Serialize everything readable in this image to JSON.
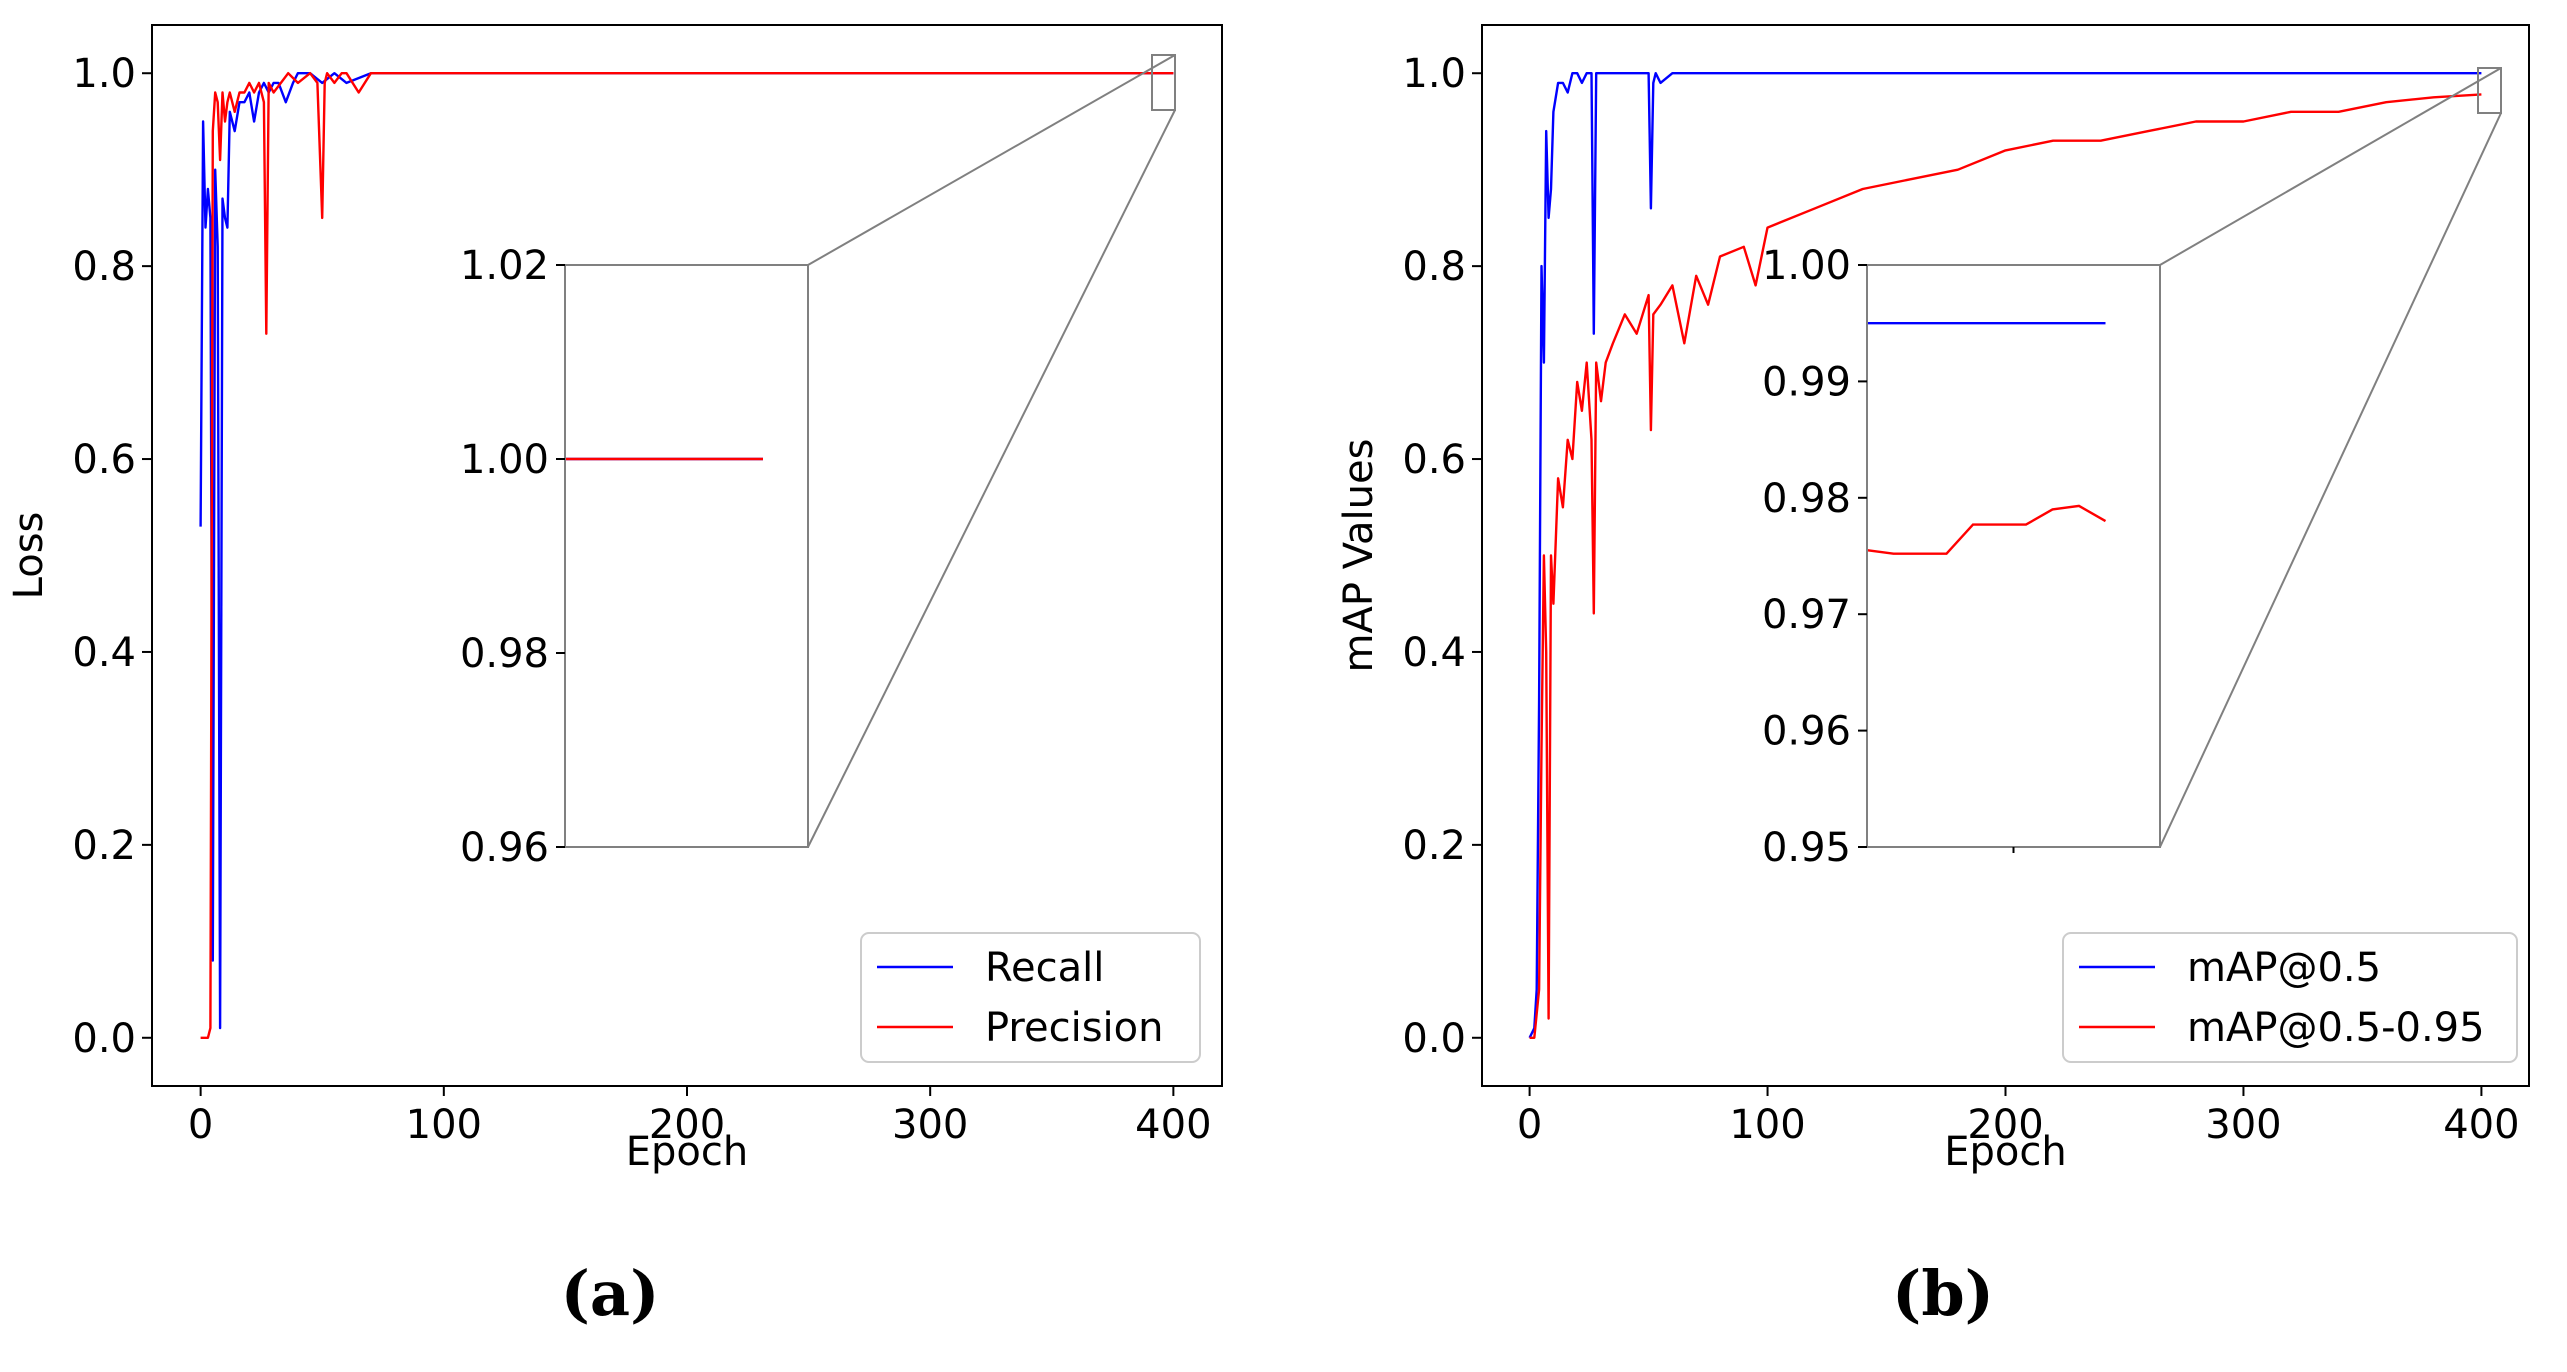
{
  "chart_data": [
    {
      "type": "line",
      "panel": "(a)",
      "xlabel": "Epoch",
      "ylabel": "Loss",
      "xlim": [
        -20,
        420
      ],
      "ylim": [
        -0.05,
        1.05
      ],
      "xticks": [
        {
          "v": 0,
          "t": "0"
        },
        {
          "v": 100,
          "t": "100"
        },
        {
          "v": 200,
          "t": "200"
        },
        {
          "v": 300,
          "t": "300"
        },
        {
          "v": 400,
          "t": "400"
        }
      ],
      "yticks": [
        {
          "v": 0,
          "t": "0.0"
        },
        {
          "v": 0.2,
          "t": "0.2"
        },
        {
          "v": 0.4,
          "t": "0.4"
        },
        {
          "v": 0.6,
          "t": "0.6"
        },
        {
          "v": 0.8,
          "t": "0.8"
        },
        {
          "v": 1.0,
          "t": "1.0"
        }
      ],
      "legend_position": "lower-right",
      "series": [
        {
          "name": "Recall",
          "color": "#0000ff",
          "x": [
            0,
            1,
            2,
            3,
            4,
            5,
            6,
            7,
            8,
            9,
            10,
            11,
            12,
            14,
            16,
            18,
            20,
            22,
            24,
            26,
            28,
            30,
            32,
            35,
            38,
            40,
            45,
            50,
            55,
            60,
            70,
            80,
            100,
            150,
            200,
            300,
            400
          ],
          "y": [
            0.53,
            0.95,
            0.84,
            0.88,
            0.85,
            0.08,
            0.9,
            0.82,
            0.01,
            0.87,
            0.85,
            0.84,
            0.96,
            0.94,
            0.97,
            0.97,
            0.98,
            0.95,
            0.98,
            0.99,
            0.98,
            0.99,
            0.99,
            0.97,
            0.99,
            1.0,
            1.0,
            0.99,
            1.0,
            0.99,
            1.0,
            1.0,
            1.0,
            1.0,
            1.0,
            1.0,
            1.0
          ]
        },
        {
          "name": "Precision",
          "color": "#ff0000",
          "x": [
            0,
            1,
            2,
            3,
            4,
            5,
            6,
            7,
            8,
            9,
            10,
            11,
            12,
            14,
            16,
            18,
            20,
            22,
            24,
            26,
            27,
            28,
            30,
            33,
            36,
            40,
            45,
            48,
            50,
            51,
            52,
            55,
            58,
            60,
            65,
            70,
            80,
            100,
            150,
            200,
            300,
            400
          ],
          "y": [
            0.0,
            0.0,
            0.0,
            0.0,
            0.01,
            0.94,
            0.98,
            0.97,
            0.91,
            0.98,
            0.95,
            0.97,
            0.98,
            0.96,
            0.98,
            0.98,
            0.99,
            0.98,
            0.99,
            0.97,
            0.73,
            0.99,
            0.98,
            0.99,
            1.0,
            0.99,
            1.0,
            0.99,
            0.85,
            0.99,
            1.0,
            0.99,
            1.0,
            1.0,
            0.98,
            1.0,
            1.0,
            1.0,
            1.0,
            1.0,
            1.0,
            1.0
          ]
        }
      ],
      "inset": {
        "ylim": [
          0.96,
          1.02
        ],
        "yticks": [
          {
            "v": 0.96,
            "t": "0.96"
          },
          {
            "v": 0.98,
            "t": "0.98"
          },
          {
            "v": 1.0,
            "t": "1.00"
          },
          {
            "v": 1.02,
            "t": "1.02"
          }
        ],
        "xlim": [
          390,
          400
        ],
        "series": [
          {
            "name": "Recall",
            "color": "#0000ff",
            "x": [
              390,
              399
            ],
            "y": [
              1.0,
              1.0
            ]
          },
          {
            "name": "Precision",
            "color": "#ff0000",
            "x": [
              390,
              399
            ],
            "y": [
              1.0,
              1.0
            ]
          }
        ]
      }
    },
    {
      "type": "line",
      "panel": "(b)",
      "xlabel": "Epoch",
      "ylabel": "mAP Values",
      "xlim": [
        -20,
        420
      ],
      "ylim": [
        -0.05,
        1.05
      ],
      "xticks": [
        {
          "v": 0,
          "t": "0"
        },
        {
          "v": 100,
          "t": "100"
        },
        {
          "v": 200,
          "t": "200"
        },
        {
          "v": 300,
          "t": "300"
        },
        {
          "v": 400,
          "t": "400"
        }
      ],
      "yticks": [
        {
          "v": 0,
          "t": "0.0"
        },
        {
          "v": 0.2,
          "t": "0.2"
        },
        {
          "v": 0.4,
          "t": "0.4"
        },
        {
          "v": 0.6,
          "t": "0.6"
        },
        {
          "v": 0.8,
          "t": "0.8"
        },
        {
          "v": 1.0,
          "t": "1.0"
        }
      ],
      "legend_position": "lower-right",
      "series": [
        {
          "name": "mAP@0.5",
          "color": "#0000ff",
          "x": [
            0,
            2,
            3,
            4,
            5,
            6,
            7,
            8,
            9,
            10,
            12,
            14,
            16,
            18,
            20,
            22,
            24,
            26,
            27,
            28,
            30,
            35,
            40,
            45,
            50,
            51,
            52,
            53,
            55,
            60,
            80,
            100,
            150,
            200,
            250,
            300,
            350,
            400
          ],
          "y": [
            0.0,
            0.01,
            0.05,
            0.35,
            0.8,
            0.7,
            0.94,
            0.85,
            0.88,
            0.96,
            0.99,
            0.99,
            0.98,
            1.0,
            1.0,
            0.99,
            1.0,
            1.0,
            0.73,
            1.0,
            1.0,
            1.0,
            1.0,
            1.0,
            1.0,
            0.86,
            0.99,
            1.0,
            0.99,
            1.0,
            1.0,
            1.0,
            1.0,
            1.0,
            1.0,
            1.0,
            1.0,
            1.0
          ]
        },
        {
          "name": "mAP@0.5-0.95",
          "color": "#ff0000",
          "x": [
            0,
            2,
            4,
            5,
            6,
            7,
            8,
            9,
            10,
            12,
            14,
            16,
            18,
            20,
            22,
            24,
            26,
            27,
            28,
            30,
            32,
            35,
            40,
            45,
            50,
            51,
            52,
            55,
            60,
            65,
            70,
            75,
            80,
            90,
            95,
            100,
            120,
            140,
            160,
            180,
            200,
            220,
            240,
            260,
            280,
            300,
            320,
            340,
            360,
            380,
            400
          ],
          "y": [
            0.0,
            0.0,
            0.05,
            0.3,
            0.5,
            0.4,
            0.02,
            0.5,
            0.45,
            0.58,
            0.55,
            0.62,
            0.6,
            0.68,
            0.65,
            0.7,
            0.62,
            0.44,
            0.7,
            0.66,
            0.7,
            0.72,
            0.75,
            0.73,
            0.77,
            0.63,
            0.75,
            0.76,
            0.78,
            0.72,
            0.79,
            0.76,
            0.81,
            0.82,
            0.78,
            0.84,
            0.86,
            0.88,
            0.89,
            0.9,
            0.92,
            0.93,
            0.93,
            0.94,
            0.95,
            0.95,
            0.96,
            0.96,
            0.97,
            0.975,
            0.978
          ]
        }
      ],
      "inset": {
        "ylim": [
          0.95,
          1.0
        ],
        "yticks": [
          {
            "v": 0.95,
            "t": "0.95"
          },
          {
            "v": 0.96,
            "t": "0.96"
          },
          {
            "v": 0.97,
            "t": "0.97"
          },
          {
            "v": 0.98,
            "t": "0.98"
          },
          {
            "v": 0.99,
            "t": "0.99"
          },
          {
            "v": 1.0,
            "t": "1.00"
          }
        ],
        "xlim": [
          390,
          400
        ],
        "series": [
          {
            "name": "mAP@0.5",
            "color": "#0000ff",
            "x": [
              390,
              399
            ],
            "y": [
              0.995,
              0.995
            ]
          },
          {
            "name": "mAP@0.5-0.95",
            "color": "#ff0000",
            "x": [
              390,
              391,
              392,
              393,
              394,
              395,
              396,
              397,
              398,
              399
            ],
            "y": [
              0.9755,
              0.9752,
              0.9752,
              0.9752,
              0.9777,
              0.9777,
              0.9777,
              0.979,
              0.9793,
              0.978
            ]
          }
        ]
      }
    }
  ]
}
